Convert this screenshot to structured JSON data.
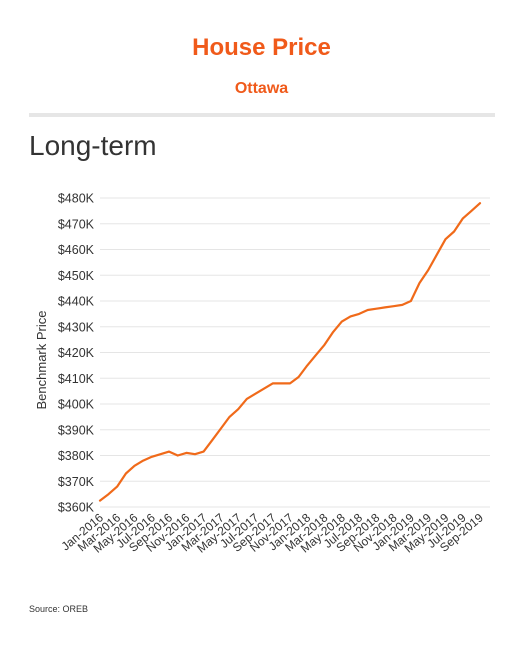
{
  "header": {
    "title": "House Price",
    "subtitle": "Ottawa",
    "section": "Long-term"
  },
  "footer": {
    "source": "Source: OREB"
  },
  "colors": {
    "accent": "#f05a1a",
    "line": "#f06a1a",
    "grid": "#e5e5e5",
    "text": "#333333"
  },
  "chart_data": {
    "type": "line",
    "title": "",
    "xlabel": "",
    "ylabel": "Benchmark Price",
    "ylim": [
      360000,
      480000
    ],
    "yticks": [
      "$360K",
      "$370K",
      "$380K",
      "$390K",
      "$400K",
      "$410K",
      "$420K",
      "$430K",
      "$440K",
      "$450K",
      "$460K",
      "$470K",
      "$480K"
    ],
    "xticks": [
      "Jan-2016",
      "Mar-2016",
      "May-2016",
      "Jul-2016",
      "Sep-2016",
      "Nov-2016",
      "Jan-2017",
      "Mar-2017",
      "May-2017",
      "Jul-2017",
      "Sep-2017",
      "Nov-2017",
      "Jan-2018",
      "Mar-2018",
      "May-2018",
      "Jul-2018",
      "Sep-2018",
      "Nov-2018",
      "Jan-2019",
      "Mar-2019",
      "May-2019",
      "Jul-2019",
      "Sep-2019"
    ],
    "grid": true,
    "legend": "none",
    "series": [
      {
        "x": [
          "Jan-2016",
          "Feb-2016",
          "Mar-2016",
          "Apr-2016",
          "May-2016",
          "Jun-2016",
          "Jul-2016",
          "Aug-2016",
          "Sep-2016",
          "Oct-2016",
          "Nov-2016",
          "Dec-2016",
          "Jan-2017",
          "Feb-2017",
          "Mar-2017",
          "Apr-2017",
          "May-2017",
          "Jun-2017",
          "Jul-2017",
          "Aug-2017",
          "Sep-2017",
          "Oct-2017",
          "Nov-2017",
          "Dec-2017",
          "Jan-2018",
          "Feb-2018",
          "Mar-2018",
          "Apr-2018",
          "May-2018",
          "Jun-2018",
          "Jul-2018",
          "Aug-2018",
          "Sep-2018",
          "Oct-2018",
          "Nov-2018",
          "Dec-2018",
          "Jan-2019",
          "Feb-2019",
          "Mar-2019",
          "Apr-2019",
          "May-2019",
          "Jun-2019",
          "Jul-2019",
          "Aug-2019",
          "Sep-2019"
        ],
        "values": [
          362500,
          365000,
          368000,
          373000,
          376000,
          378000,
          379500,
          380500,
          381500,
          380000,
          381000,
          380500,
          381500,
          386000,
          390500,
          395000,
          398000,
          402000,
          404000,
          406000,
          408000,
          408000,
          408000,
          410500,
          415000,
          419000,
          423000,
          428000,
          432000,
          434000,
          435000,
          436500,
          437000,
          437500,
          438000,
          438500,
          440000,
          447000,
          452000,
          458000,
          464000,
          467000,
          472000,
          475000,
          478000
        ]
      }
    ]
  }
}
